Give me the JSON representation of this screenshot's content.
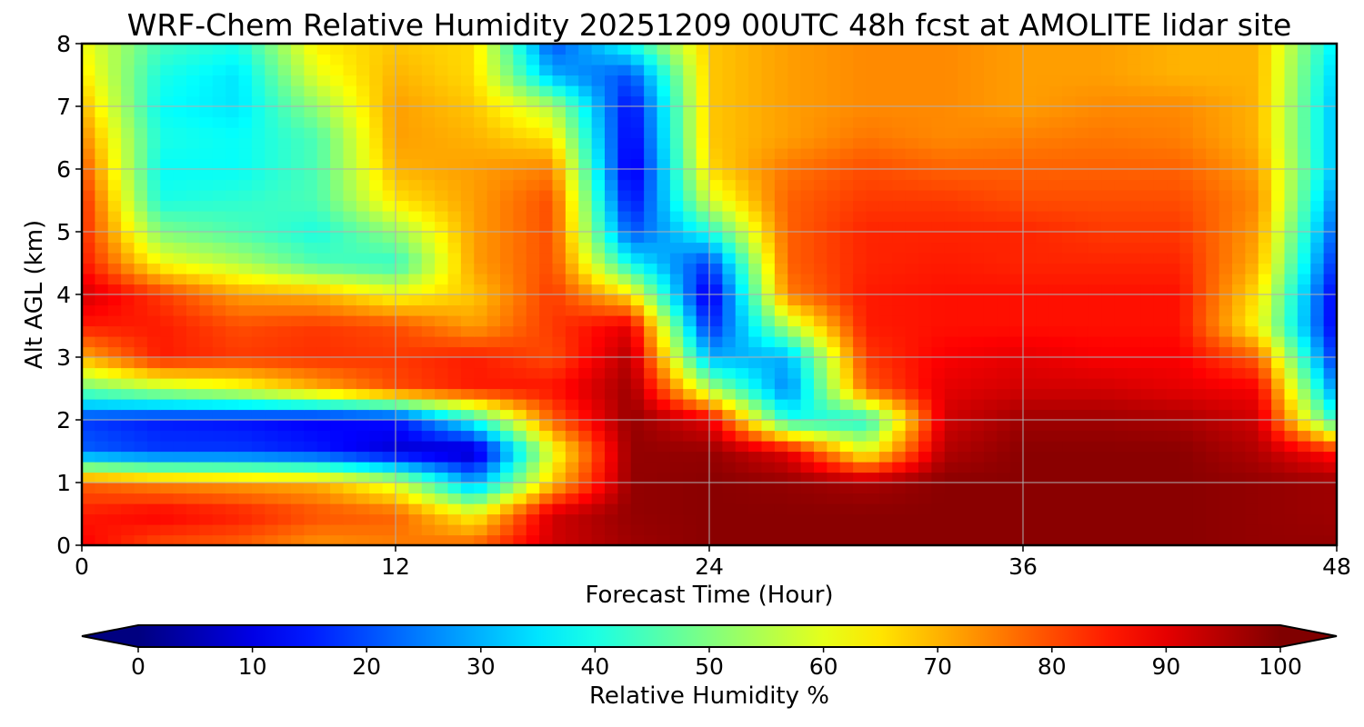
{
  "chart_data": {
    "type": "heatmap",
    "title": "WRF-Chem Relative Humidity 20251209 00UTC 48h fcst at AMOLITE lidar site",
    "xlabel": "Forecast Time (Hour)",
    "ylabel": "Alt AGL (km)",
    "xlim": [
      0,
      48
    ],
    "ylim": [
      0,
      8
    ],
    "xticks": [
      "0",
      "12",
      "24",
      "36",
      "48"
    ],
    "yticks": [
      "0",
      "1",
      "2",
      "3",
      "4",
      "5",
      "6",
      "7",
      "8"
    ],
    "grid": true,
    "colormap": "jet",
    "colorbar": {
      "label": "Relative Humidity %",
      "range": [
        0,
        100
      ],
      "ticks": [
        "0",
        "10",
        "20",
        "30",
        "40",
        "50",
        "60",
        "70",
        "80",
        "90",
        "100"
      ],
      "extend": "both",
      "orientation": "horizontal"
    },
    "x_hours": [
      0,
      3,
      6,
      9,
      12,
      15,
      18,
      21,
      24,
      27,
      30,
      33,
      36,
      39,
      42,
      45,
      48
    ],
    "z_km": [
      0,
      0.5,
      1,
      1.5,
      2,
      2.5,
      3,
      3.5,
      4,
      4.5,
      5,
      5.5,
      6,
      6.5,
      7,
      7.5,
      8
    ],
    "rh_percent": [
      [
        88,
        80,
        78,
        73,
        75,
        78,
        92,
        97,
        99,
        99,
        99,
        99,
        99,
        99,
        99,
        98,
        98
      ],
      [
        85,
        88,
        85,
        80,
        78,
        62,
        92,
        98,
        99,
        99,
        99,
        99,
        99,
        99,
        99,
        98,
        97
      ],
      [
        78,
        74,
        72,
        70,
        58,
        28,
        68,
        98,
        99,
        98,
        96,
        99,
        99,
        99,
        99,
        98,
        97
      ],
      [
        22,
        18,
        18,
        15,
        8,
        5,
        60,
        98,
        98,
        90,
        60,
        95,
        99,
        99,
        99,
        95,
        85
      ],
      [
        18,
        15,
        14,
        12,
        14,
        40,
        78,
        98,
        90,
        40,
        40,
        92,
        97,
        97,
        96,
        92,
        40
      ],
      [
        48,
        55,
        60,
        70,
        80,
        85,
        86,
        97,
        55,
        25,
        78,
        90,
        92,
        92,
        90,
        88,
        25
      ],
      [
        70,
        85,
        82,
        83,
        82,
        85,
        80,
        95,
        30,
        30,
        82,
        88,
        90,
        88,
        88,
        78,
        15
      ],
      [
        85,
        85,
        80,
        82,
        80,
        72,
        82,
        90,
        15,
        55,
        85,
        86,
        86,
        86,
        86,
        62,
        10
      ],
      [
        92,
        82,
        72,
        70,
        62,
        68,
        82,
        65,
        8,
        75,
        85,
        86,
        86,
        86,
        86,
        65,
        10
      ],
      [
        86,
        62,
        55,
        45,
        42,
        72,
        80,
        38,
        18,
        78,
        84,
        85,
        84,
        84,
        84,
        70,
        15
      ],
      [
        84,
        50,
        45,
        40,
        52,
        72,
        80,
        20,
        40,
        78,
        84,
        84,
        84,
        82,
        82,
        72,
        20
      ],
      [
        84,
        40,
        42,
        45,
        65,
        72,
        80,
        12,
        58,
        78,
        82,
        82,
        80,
        80,
        80,
        74,
        25
      ],
      [
        80,
        38,
        38,
        45,
        70,
        72,
        75,
        8,
        66,
        76,
        80,
        78,
        78,
        78,
        78,
        72,
        30
      ],
      [
        75,
        40,
        38,
        45,
        72,
        70,
        65,
        10,
        68,
        72,
        76,
        74,
        75,
        76,
        75,
        70,
        30
      ],
      [
        70,
        38,
        35,
        52,
        72,
        68,
        55,
        12,
        68,
        72,
        74,
        74,
        72,
        74,
        74,
        70,
        30
      ],
      [
        65,
        40,
        35,
        60,
        70,
        66,
        30,
        20,
        68,
        72,
        74,
        74,
        72,
        72,
        70,
        70,
        32
      ],
      [
        62,
        44,
        40,
        64,
        68,
        66,
        20,
        40,
        68,
        72,
        74,
        74,
        72,
        72,
        70,
        70,
        35
      ]
    ]
  }
}
